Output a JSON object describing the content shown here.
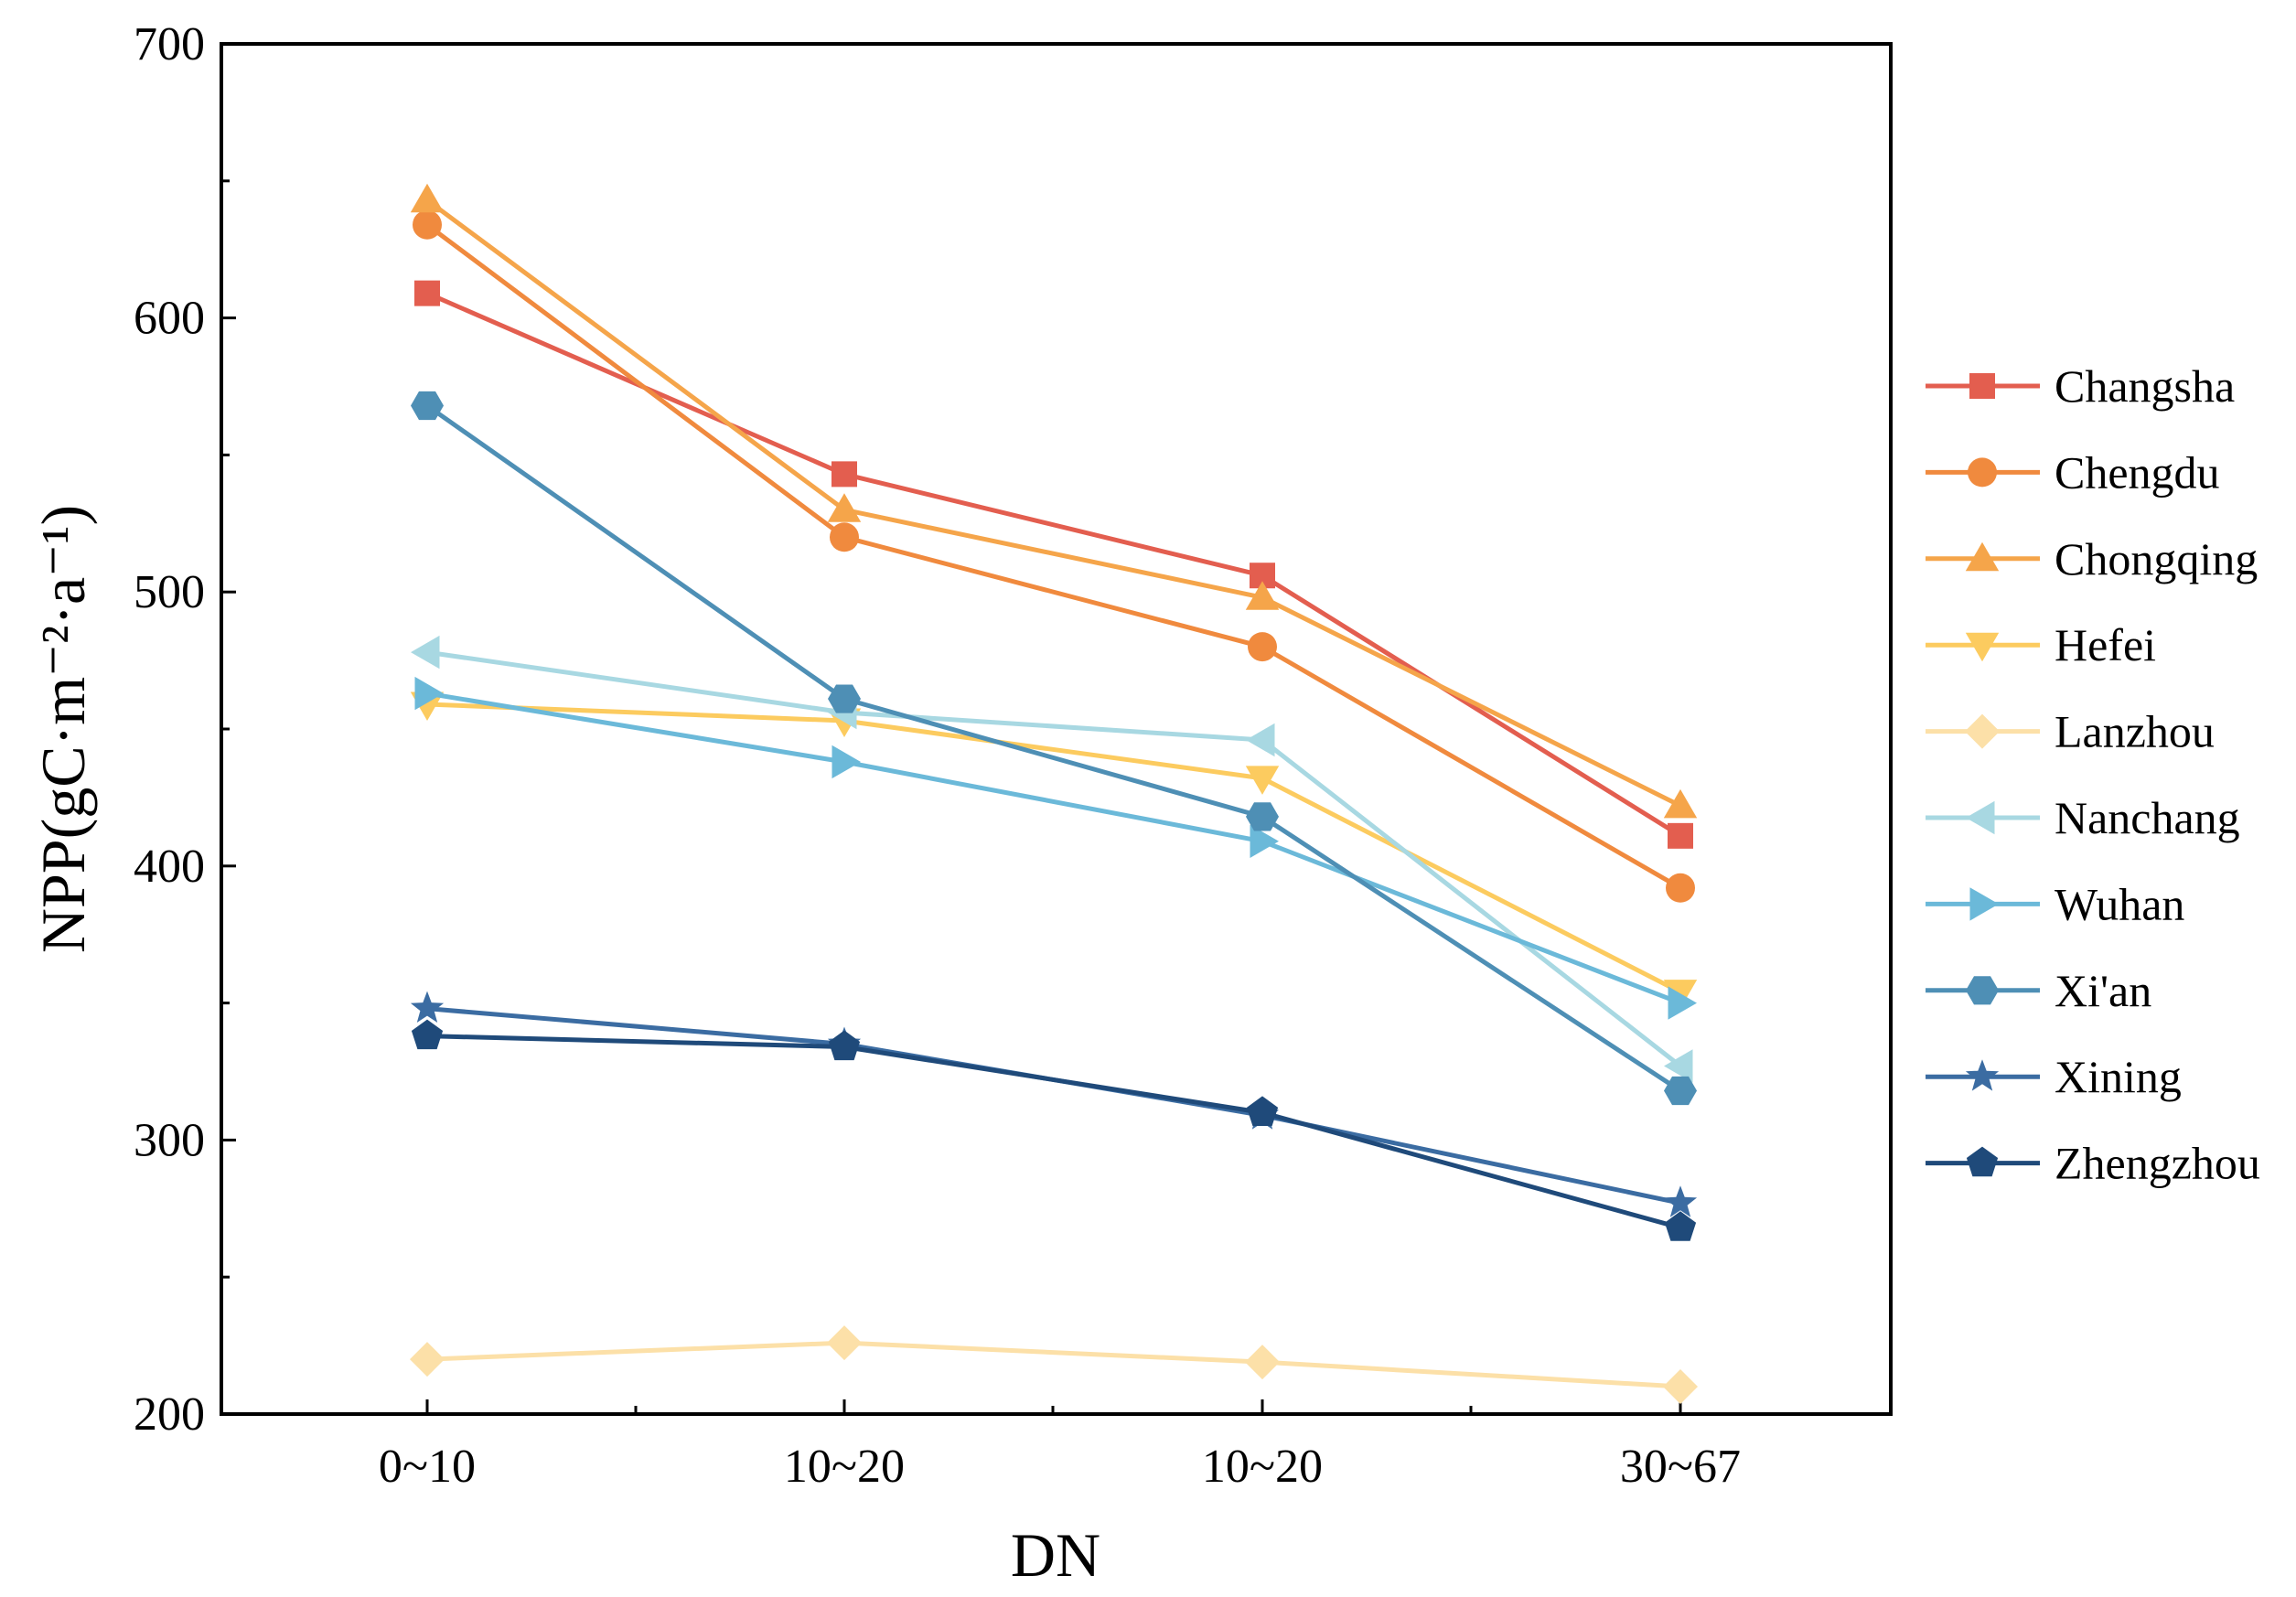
{
  "chart_data": {
    "type": "line",
    "title": "",
    "xlabel": "DN",
    "ylabel": "NPP(gC·m⁻²·a⁻¹)",
    "ylim": [
      200,
      700
    ],
    "yticks": [
      200,
      300,
      400,
      500,
      600,
      700
    ],
    "categories": [
      "0~10",
      "10~20",
      "10~20",
      "30~67"
    ],
    "legend_position": "right",
    "series": [
      {
        "name": "Changsha",
        "marker": "square",
        "color": "#E35E4F",
        "values": [
          609,
          543,
          506,
          411
        ]
      },
      {
        "name": "Chengdu",
        "marker": "circle",
        "color": "#F08A3E",
        "values": [
          634,
          520,
          480,
          392
        ]
      },
      {
        "name": "Chongqing",
        "marker": "triangle-up",
        "color": "#F5A54A",
        "values": [
          643,
          530,
          498,
          422
        ]
      },
      {
        "name": "Hefei",
        "marker": "triangle-down",
        "color": "#FCCB5F",
        "values": [
          459,
          453,
          432,
          354
        ]
      },
      {
        "name": "Lanzhou",
        "marker": "diamond",
        "color": "#FCE0A8",
        "values": [
          220,
          226,
          219,
          210
        ]
      },
      {
        "name": "Nanchang",
        "marker": "triangle-left",
        "color": "#A8D8E2",
        "values": [
          478,
          456,
          446,
          327
        ]
      },
      {
        "name": "Wuhan",
        "marker": "triangle-right",
        "color": "#6BB9D9",
        "values": [
          463,
          438,
          409,
          350
        ]
      },
      {
        "name": "Xi'an",
        "marker": "hexagon",
        "color": "#4E8FB5",
        "values": [
          568,
          461,
          418,
          318
        ]
      },
      {
        "name": "Xining",
        "marker": "star",
        "color": "#3B6CA2",
        "values": [
          348,
          335,
          309,
          277
        ]
      },
      {
        "name": "Zhengzhou",
        "marker": "pentagon",
        "color": "#1F4A7A",
        "values": [
          338,
          334,
          310,
          268
        ]
      }
    ]
  }
}
